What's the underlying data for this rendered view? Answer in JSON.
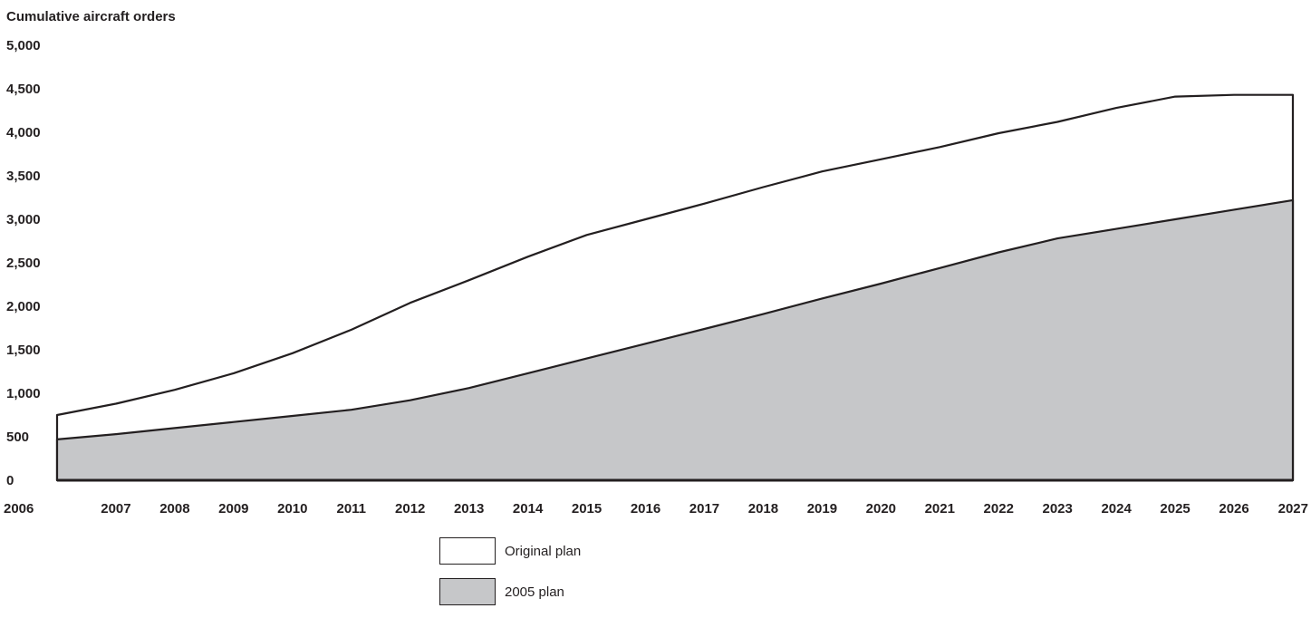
{
  "chart_data": {
    "type": "area",
    "ylabel": "Cumulative aircraft orders",
    "xlabel": "",
    "title": "",
    "x": [
      2006,
      2007,
      2008,
      2009,
      2010,
      2011,
      2012,
      2013,
      2014,
      2015,
      2016,
      2017,
      2018,
      2019,
      2020,
      2021,
      2022,
      2023,
      2024,
      2025,
      2026,
      2027
    ],
    "x_tick_labels": [
      "2006",
      "2007",
      "2008",
      "2009",
      "2010",
      "2011",
      "2012",
      "2013",
      "2014",
      "2015",
      "2016",
      "2017",
      "2018",
      "2019",
      "2020",
      "2021",
      "2022",
      "2023",
      "2024",
      "2025",
      "2026",
      "2027"
    ],
    "ylim": [
      0,
      5000
    ],
    "y_ticks": [
      0,
      500,
      1000,
      1500,
      2000,
      2500,
      3000,
      3500,
      4000,
      4500,
      5000
    ],
    "y_tick_labels": [
      "0",
      "500",
      "1,000",
      "1,500",
      "2,000",
      "2,500",
      "3,000",
      "3,500",
      "4,000",
      "4,500",
      "5,000"
    ],
    "grid": false,
    "legend_position": "bottom-center",
    "series": [
      {
        "name": "Original plan",
        "color": "#ffffff",
        "values": [
          750,
          880,
          1040,
          1230,
          1460,
          1730,
          2040,
          2300,
          2570,
          2820,
          3000,
          3180,
          3370,
          3550,
          3690,
          3830,
          3990,
          4120,
          4280,
          4410,
          4430,
          4430
        ]
      },
      {
        "name": "2005 plan",
        "color": "#c6c7c9",
        "values": [
          470,
          530,
          600,
          670,
          740,
          810,
          920,
          1060,
          1230,
          1400,
          1570,
          1740,
          1910,
          2090,
          2260,
          2440,
          2620,
          2780,
          2890,
          3000,
          3110,
          3220
        ]
      }
    ]
  }
}
